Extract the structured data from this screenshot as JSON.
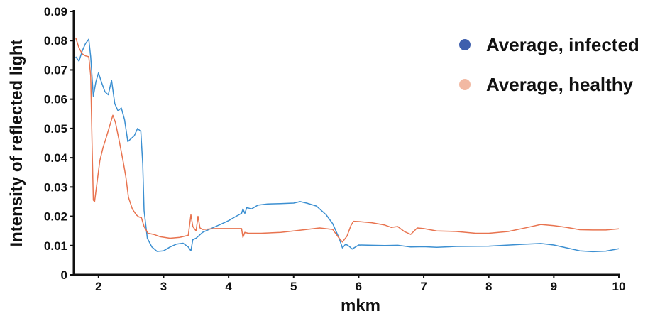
{
  "chart_data": {
    "type": "line",
    "xlabel": "mkm",
    "ylabel": "Intensity of reflected light",
    "xlim": [
      1.62,
      10
    ],
    "ylim": [
      0,
      0.09
    ],
    "x_ticks": [
      "2",
      "3",
      "4",
      "5",
      "6",
      "7",
      "8",
      "9",
      "10"
    ],
    "y_ticks": [
      "0",
      "0.01",
      "0.02",
      "0.03",
      "0.04",
      "0.05",
      "0.06",
      "0.07",
      "0.08",
      "0.09"
    ],
    "grid": false,
    "legend_position": "top-right",
    "series": [
      {
        "name": "Average, infected",
        "color": "#3b8fd1",
        "marker_color": "#3f5fad",
        "points": [
          [
            1.65,
            0.0745
          ],
          [
            1.7,
            0.073
          ],
          [
            1.75,
            0.0765
          ],
          [
            1.8,
            0.079
          ],
          [
            1.85,
            0.0805
          ],
          [
            1.88,
            0.0745
          ],
          [
            1.92,
            0.061
          ],
          [
            1.96,
            0.066
          ],
          [
            2.0,
            0.069
          ],
          [
            2.05,
            0.0655
          ],
          [
            2.1,
            0.0625
          ],
          [
            2.15,
            0.0615
          ],
          [
            2.2,
            0.0665
          ],
          [
            2.25,
            0.0585
          ],
          [
            2.3,
            0.056
          ],
          [
            2.35,
            0.057
          ],
          [
            2.4,
            0.053
          ],
          [
            2.45,
            0.0455
          ],
          [
            2.5,
            0.0465
          ],
          [
            2.55,
            0.0475
          ],
          [
            2.6,
            0.05
          ],
          [
            2.65,
            0.049
          ],
          [
            2.68,
            0.038
          ],
          [
            2.7,
            0.022
          ],
          [
            2.75,
            0.0125
          ],
          [
            2.82,
            0.0095
          ],
          [
            2.9,
            0.008
          ],
          [
            3.0,
            0.0082
          ],
          [
            3.1,
            0.0095
          ],
          [
            3.2,
            0.0105
          ],
          [
            3.3,
            0.0108
          ],
          [
            3.38,
            0.0095
          ],
          [
            3.42,
            0.0082
          ],
          [
            3.45,
            0.012
          ],
          [
            3.5,
            0.0125
          ],
          [
            3.6,
            0.0145
          ],
          [
            3.7,
            0.0155
          ],
          [
            3.8,
            0.0165
          ],
          [
            3.9,
            0.0175
          ],
          [
            4.0,
            0.0185
          ],
          [
            4.1,
            0.0198
          ],
          [
            4.2,
            0.021
          ],
          [
            4.22,
            0.0225
          ],
          [
            4.25,
            0.021
          ],
          [
            4.28,
            0.023
          ],
          [
            4.35,
            0.0225
          ],
          [
            4.45,
            0.0238
          ],
          [
            4.6,
            0.0242
          ],
          [
            4.8,
            0.0243
          ],
          [
            5.0,
            0.0245
          ],
          [
            5.1,
            0.025
          ],
          [
            5.2,
            0.0245
          ],
          [
            5.35,
            0.0235
          ],
          [
            5.5,
            0.0205
          ],
          [
            5.6,
            0.0175
          ],
          [
            5.7,
            0.0125
          ],
          [
            5.75,
            0.0092
          ],
          [
            5.8,
            0.0105
          ],
          [
            5.85,
            0.0098
          ],
          [
            5.9,
            0.0088
          ],
          [
            6.0,
            0.0102
          ],
          [
            6.2,
            0.0101
          ],
          [
            6.4,
            0.01
          ],
          [
            6.6,
            0.0101
          ],
          [
            6.8,
            0.0095
          ],
          [
            7.0,
            0.0096
          ],
          [
            7.2,
            0.0094
          ],
          [
            7.5,
            0.0097
          ],
          [
            8.0,
            0.0098
          ],
          [
            8.5,
            0.0104
          ],
          [
            8.8,
            0.0107
          ],
          [
            9.0,
            0.0102
          ],
          [
            9.2,
            0.0092
          ],
          [
            9.4,
            0.0082
          ],
          [
            9.6,
            0.0079
          ],
          [
            9.8,
            0.0081
          ],
          [
            10.0,
            0.0089
          ]
        ]
      },
      {
        "name": "Average, healthy",
        "color": "#e8734f",
        "marker_color": "#f2b9a3",
        "points": [
          [
            1.65,
            0.081
          ],
          [
            1.7,
            0.0775
          ],
          [
            1.75,
            0.0755
          ],
          [
            1.8,
            0.0748
          ],
          [
            1.85,
            0.0745
          ],
          [
            1.88,
            0.068
          ],
          [
            1.9,
            0.045
          ],
          [
            1.92,
            0.0255
          ],
          [
            1.94,
            0.025
          ],
          [
            1.98,
            0.032
          ],
          [
            2.02,
            0.039
          ],
          [
            2.07,
            0.0435
          ],
          [
            2.12,
            0.047
          ],
          [
            2.18,
            0.0515
          ],
          [
            2.22,
            0.0545
          ],
          [
            2.26,
            0.052
          ],
          [
            2.32,
            0.0455
          ],
          [
            2.38,
            0.0385
          ],
          [
            2.42,
            0.0335
          ],
          [
            2.46,
            0.0265
          ],
          [
            2.52,
            0.0225
          ],
          [
            2.58,
            0.0205
          ],
          [
            2.62,
            0.0198
          ],
          [
            2.66,
            0.0195
          ],
          [
            2.7,
            0.0165
          ],
          [
            2.76,
            0.0142
          ],
          [
            2.85,
            0.0138
          ],
          [
            2.95,
            0.013
          ],
          [
            3.1,
            0.0125
          ],
          [
            3.25,
            0.0128
          ],
          [
            3.38,
            0.0135
          ],
          [
            3.42,
            0.0205
          ],
          [
            3.45,
            0.0165
          ],
          [
            3.5,
            0.015
          ],
          [
            3.53,
            0.02
          ],
          [
            3.56,
            0.016
          ],
          [
            3.6,
            0.0155
          ],
          [
            3.8,
            0.0158
          ],
          [
            4.0,
            0.0158
          ],
          [
            4.15,
            0.0158
          ],
          [
            4.2,
            0.0158
          ],
          [
            4.22,
            0.0128
          ],
          [
            4.25,
            0.0145
          ],
          [
            4.3,
            0.0142
          ],
          [
            4.5,
            0.0142
          ],
          [
            4.8,
            0.0145
          ],
          [
            5.0,
            0.015
          ],
          [
            5.2,
            0.0155
          ],
          [
            5.4,
            0.016
          ],
          [
            5.6,
            0.0155
          ],
          [
            5.7,
            0.0125
          ],
          [
            5.75,
            0.0112
          ],
          [
            5.82,
            0.0132
          ],
          [
            5.88,
            0.0168
          ],
          [
            5.92,
            0.0183
          ],
          [
            6.0,
            0.0182
          ],
          [
            6.2,
            0.0178
          ],
          [
            6.4,
            0.017
          ],
          [
            6.5,
            0.0162
          ],
          [
            6.6,
            0.0165
          ],
          [
            6.7,
            0.0148
          ],
          [
            6.8,
            0.0138
          ],
          [
            6.9,
            0.016
          ],
          [
            7.0,
            0.0158
          ],
          [
            7.2,
            0.015
          ],
          [
            7.5,
            0.0148
          ],
          [
            7.8,
            0.0142
          ],
          [
            8.0,
            0.0142
          ],
          [
            8.3,
            0.0148
          ],
          [
            8.6,
            0.0162
          ],
          [
            8.8,
            0.0172
          ],
          [
            9.0,
            0.0168
          ],
          [
            9.2,
            0.0162
          ],
          [
            9.4,
            0.0154
          ],
          [
            9.6,
            0.0153
          ],
          [
            9.8,
            0.0153
          ],
          [
            10.0,
            0.0157
          ]
        ]
      }
    ]
  }
}
